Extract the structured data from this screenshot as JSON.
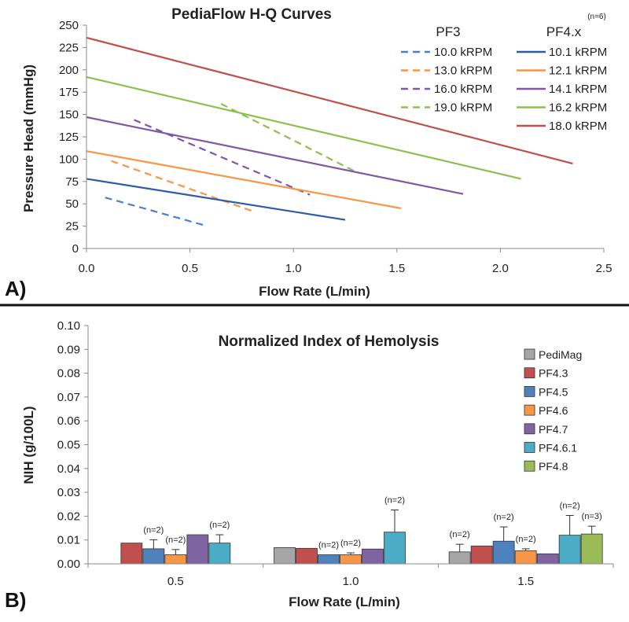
{
  "chart_data": [
    {
      "panel_label": "A)",
      "type": "line",
      "title": "PediaFlow H-Q Curves",
      "xlabel": "Flow Rate (L/min)",
      "ylabel": "Pressure Head (mmHg)",
      "xlim": [
        0,
        2.5
      ],
      "ylim": [
        0,
        250
      ],
      "x_ticks": [
        "0.0",
        "0.5",
        "1.0",
        "1.5",
        "2.0",
        "2.5"
      ],
      "y_ticks": [
        "0",
        "25",
        "50",
        "75",
        "100",
        "125",
        "150",
        "175",
        "200",
        "225",
        "250"
      ],
      "legend": {
        "dashed_header": "PF3",
        "solid_header": "PF4.x",
        "solid_header_sup": "(n=6)"
      },
      "series": [
        {
          "name": "10.0 kRPM",
          "group": "PF3",
          "style": "dashed",
          "color": "#4a7fc9",
          "x": [
            0.09,
            0.57
          ],
          "y": [
            57,
            26
          ]
        },
        {
          "name": "13.0 kRPM",
          "group": "PF3",
          "style": "dashed",
          "color": "#f79646",
          "x": [
            0.12,
            0.8
          ],
          "y": [
            98,
            42
          ]
        },
        {
          "name": "16.0 kRPM",
          "group": "PF3",
          "style": "dashed",
          "color": "#7f58a6",
          "x": [
            0.23,
            1.08
          ],
          "y": [
            144,
            60
          ]
        },
        {
          "name": "19.0 kRPM",
          "group": "PF3",
          "style": "dashed",
          "color": "#8cc04f",
          "x": [
            0.65,
            1.3
          ],
          "y": [
            162,
            86
          ]
        },
        {
          "name": "10.1 kRPM",
          "group": "PF4.x",
          "style": "solid",
          "color": "#2e5ca8",
          "x": [
            0.0,
            1.25
          ],
          "y": [
            78,
            32
          ]
        },
        {
          "name": "12.1 kRPM",
          "group": "PF4.x",
          "style": "solid",
          "color": "#f79646",
          "x": [
            0.0,
            1.52
          ],
          "y": [
            109,
            45
          ]
        },
        {
          "name": "14.1 kRPM",
          "group": "PF4.x",
          "style": "solid",
          "color": "#7f58a6",
          "x": [
            0.0,
            1.82
          ],
          "y": [
            147,
            61
          ]
        },
        {
          "name": "16.2 kRPM",
          "group": "PF4.x",
          "style": "solid",
          "color": "#8cc04f",
          "x": [
            0.0,
            2.1
          ],
          "y": [
            192,
            78
          ]
        },
        {
          "name": "18.0 kRPM",
          "group": "PF4.x",
          "style": "solid",
          "color": "#c0504d",
          "x": [
            0.0,
            2.35
          ],
          "y": [
            236,
            95
          ]
        }
      ]
    },
    {
      "panel_label": "B)",
      "type": "bar",
      "title": "Normalized Index of Hemolysis",
      "xlabel": "Flow Rate (L/min)",
      "ylabel": "NIH (g/100L)",
      "ylim": [
        0,
        0.1
      ],
      "y_ticks": [
        "0.00",
        "0.01",
        "0.02",
        "0.03",
        "0.04",
        "0.05",
        "0.06",
        "0.07",
        "0.08",
        "0.09",
        "0.10"
      ],
      "categories": [
        "0.5",
        "1.0",
        "1.5"
      ],
      "series": [
        {
          "name": "PediMag",
          "color": "#a6a6a6",
          "values": [
            null,
            0.0068,
            0.005
          ],
          "errors": [
            null,
            null,
            0.0032
          ],
          "n_labels": [
            null,
            null,
            "(n=2)"
          ]
        },
        {
          "name": "PF4.3",
          "color": "#c0504d",
          "values": [
            0.0087,
            0.0065,
            0.0075
          ],
          "errors": [
            null,
            null,
            null
          ],
          "n_labels": [
            null,
            null,
            null
          ]
        },
        {
          "name": "PF4.5",
          "color": "#4f81bd",
          "values": [
            0.0063,
            0.0038,
            0.0095
          ],
          "errors": [
            0.0038,
            null,
            0.006
          ],
          "n_labels": [
            "(n=2)",
            "(n=2)",
            "(n=2)"
          ]
        },
        {
          "name": "PF4.6",
          "color": "#f79646",
          "values": [
            0.0038,
            0.0038,
            0.0055
          ],
          "errors": [
            0.0022,
            0.0008,
            0.0008
          ],
          "n_labels": [
            "(n=2)",
            "(n=2)",
            "(n=2)"
          ]
        },
        {
          "name": "PF4.7",
          "color": "#8064a2",
          "values": [
            0.0122,
            0.0062,
            0.0042
          ],
          "errors": [
            null,
            null,
            null
          ],
          "n_labels": [
            null,
            null,
            null
          ]
        },
        {
          "name": "PF4.6.1",
          "color": "#4bacc6",
          "values": [
            0.0087,
            0.0133,
            0.012
          ],
          "errors": [
            0.0035,
            0.0093,
            0.0083
          ],
          "n_labels": [
            "(n=2)",
            "(n=2)",
            "(n=2)"
          ]
        },
        {
          "name": "PF4.8",
          "color": "#9bbb59",
          "values": [
            null,
            null,
            0.0125
          ],
          "errors": [
            null,
            null,
            0.0033
          ],
          "n_labels": [
            null,
            null,
            "(n=3)"
          ]
        }
      ]
    }
  ]
}
